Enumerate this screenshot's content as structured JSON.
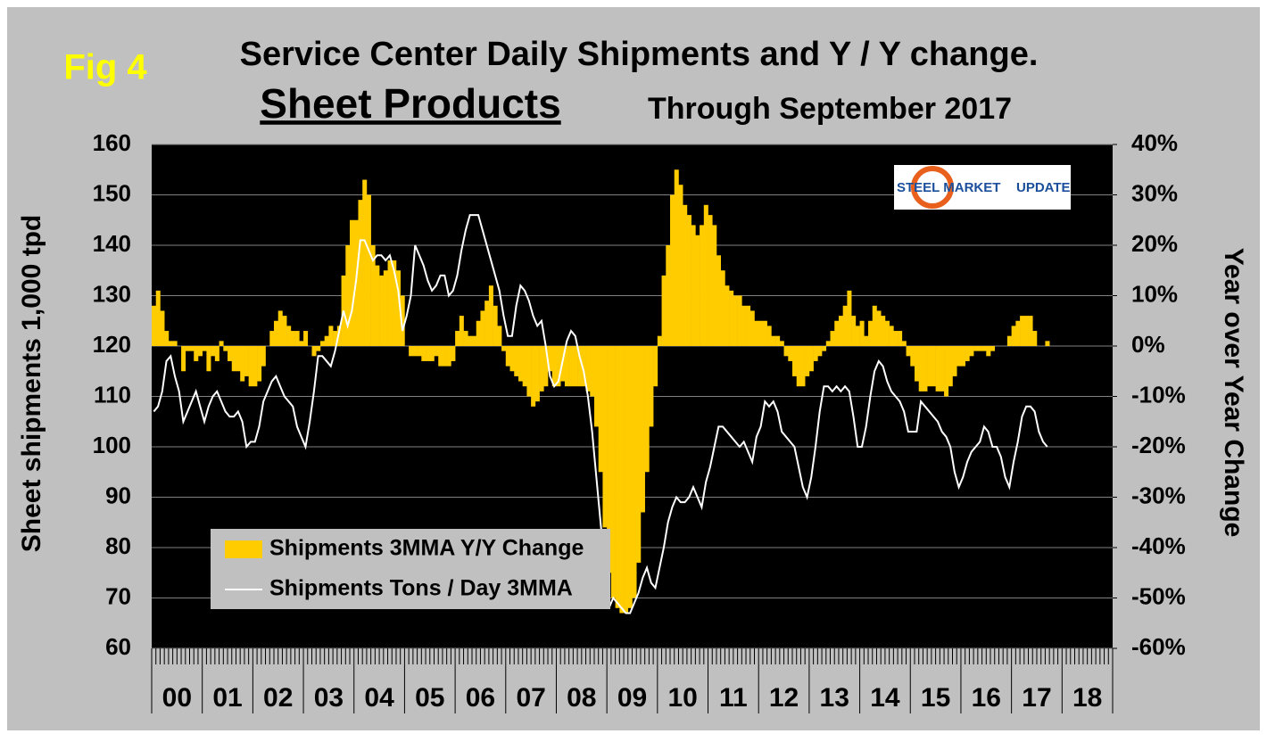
{
  "fig_label": "Fig 4",
  "chart_data": {
    "type": "combo",
    "title": "Service Center Daily Shipments and Y / Y change.",
    "subtitle": "Sheet Products",
    "subtitle_note": "Through September 2017",
    "ylabel": "Sheet shipments 1,000 tpd",
    "y2label": "Year over Year Change",
    "logo": {
      "brand": "STEEL MARKET",
      "word": "UPDATE"
    },
    "categories": [
      "00",
      null,
      null,
      null,
      null,
      null,
      null,
      null,
      null,
      null,
      null,
      null,
      "01",
      null,
      null,
      null,
      null,
      null,
      null,
      null,
      null,
      null,
      null,
      null,
      "02",
      null,
      null,
      null,
      null,
      null,
      null,
      null,
      null,
      null,
      null,
      null,
      "03",
      null,
      null,
      null,
      null,
      null,
      null,
      null,
      null,
      null,
      null,
      null,
      "04",
      null,
      null,
      null,
      null,
      null,
      null,
      null,
      null,
      null,
      null,
      null,
      "05",
      null,
      null,
      null,
      null,
      null,
      null,
      null,
      null,
      null,
      null,
      null,
      "06",
      null,
      null,
      null,
      null,
      null,
      null,
      null,
      null,
      null,
      null,
      null,
      "07",
      null,
      null,
      null,
      null,
      null,
      null,
      null,
      null,
      null,
      null,
      null,
      "08",
      null,
      null,
      null,
      null,
      null,
      null,
      null,
      null,
      null,
      null,
      null,
      "09",
      null,
      null,
      null,
      null,
      null,
      null,
      null,
      null,
      null,
      null,
      null,
      "10",
      null,
      null,
      null,
      null,
      null,
      null,
      null,
      null,
      null,
      null,
      null,
      "11",
      null,
      null,
      null,
      null,
      null,
      null,
      null,
      null,
      null,
      null,
      null,
      "12",
      null,
      null,
      null,
      null,
      null,
      null,
      null,
      null,
      null,
      null,
      null,
      "13",
      null,
      null,
      null,
      null,
      null,
      null,
      null,
      null,
      null,
      null,
      null,
      "14",
      null,
      null,
      null,
      null,
      null,
      null,
      null,
      null,
      null,
      null,
      null,
      "15",
      null,
      null,
      null,
      null,
      null,
      null,
      null,
      null,
      null,
      null,
      null,
      "16",
      null,
      null,
      null,
      null,
      null,
      null,
      null,
      null,
      null,
      null,
      null,
      "17",
      null,
      null,
      null,
      null,
      null,
      null,
      null,
      null,
      null,
      null,
      null,
      "18",
      null,
      null,
      null,
      null,
      null,
      null,
      null,
      null,
      null,
      null,
      null
    ],
    "series": [
      {
        "name": "Shipments 3MMA Y/Y Change",
        "type": "bar",
        "axis": "y2",
        "color": "#ffcc00",
        "values": [
          8,
          11,
          7,
          3,
          1,
          1,
          0,
          -5,
          -1,
          -1,
          -3,
          -2,
          -1,
          -5,
          -2,
          -3,
          1,
          -1,
          -3,
          -5,
          -5,
          -7,
          -6,
          -8,
          -8,
          -7,
          -4,
          0,
          3,
          5,
          7,
          6,
          4,
          3,
          3,
          1,
          3,
          0,
          -2,
          -1,
          1,
          2,
          4,
          3,
          4,
          14,
          20,
          25,
          25,
          29,
          33,
          30,
          20,
          16,
          14,
          15,
          17,
          17,
          15,
          10,
          0,
          -2,
          -2,
          -2,
          -3,
          -3,
          -3,
          -2,
          -4,
          -4,
          -4,
          -3,
          3,
          6,
          3,
          2,
          2,
          5,
          7,
          9,
          12,
          8,
          4,
          -1,
          -4,
          -5,
          -6,
          -7,
          -8,
          -10,
          -12,
          -11,
          -9,
          -8,
          -5,
          -8,
          -8,
          -7,
          -8,
          -8,
          -8,
          -8,
          -8,
          -9,
          -10,
          -16,
          -25,
          -36,
          -45,
          -50,
          -52,
          -53,
          -53,
          -52,
          -50,
          -43,
          -33,
          -25,
          -16,
          -8,
          2,
          14,
          20,
          30,
          35,
          32,
          28,
          26,
          24,
          22,
          24,
          28,
          26,
          24,
          18,
          15,
          12,
          11,
          10,
          10,
          8,
          8,
          7,
          5,
          5,
          5,
          4,
          2,
          2,
          1,
          -2,
          -3,
          -6,
          -8,
          -8,
          -6,
          -5,
          -3,
          -2,
          -1,
          1,
          3,
          5,
          6,
          8,
          11,
          6,
          4,
          5,
          2,
          5,
          8,
          7,
          6,
          5,
          4,
          3,
          3,
          1,
          -2,
          -4,
          -7,
          -9,
          -9,
          -8,
          -8,
          -9,
          -9,
          -10,
          -8,
          -6,
          -4,
          -4,
          -3,
          -2,
          -1,
          -1,
          -1,
          -2,
          -1,
          0,
          0,
          0,
          2,
          4,
          5,
          6,
          6,
          6,
          3,
          0,
          0,
          1,
          null,
          null,
          null,
          null,
          null,
          null,
          null,
          null,
          null,
          null,
          null,
          null,
          null,
          null,
          null
        ]
      },
      {
        "name": "Shipments Tons / Day 3MMA",
        "type": "line",
        "color": "#ffffff",
        "values": [
          107,
          108,
          111,
          117,
          118,
          114,
          111,
          105,
          107,
          109,
          111,
          108,
          105,
          108,
          110,
          111,
          109,
          107,
          106,
          106,
          107,
          105,
          100,
          101,
          101,
          104,
          109,
          111,
          113,
          114,
          112,
          110,
          109,
          108,
          104,
          102,
          100,
          105,
          111,
          118,
          118,
          117,
          116,
          119,
          123,
          127,
          124,
          127,
          133,
          141,
          141,
          139,
          137,
          138,
          138,
          137,
          138,
          135,
          131,
          123,
          126,
          130,
          140,
          138,
          136,
          133,
          131,
          132,
          134,
          134,
          130,
          131,
          134,
          139,
          143,
          146,
          146,
          146,
          143,
          140,
          137,
          134,
          131,
          126,
          122,
          122,
          128,
          132,
          131,
          129,
          126,
          124,
          125,
          120,
          114,
          112,
          113,
          117,
          121,
          123,
          122,
          118,
          115,
          110,
          103,
          94,
          85,
          76,
          68,
          70,
          69,
          68,
          67,
          67,
          69,
          71,
          74,
          76,
          73,
          72,
          76,
          80,
          85,
          88,
          90,
          89,
          89,
          90,
          92,
          90,
          88,
          93,
          96,
          100,
          104,
          104,
          103,
          102,
          101,
          100,
          101,
          99,
          97,
          102,
          104,
          109,
          108,
          109,
          107,
          103,
          102,
          101,
          100,
          96,
          92,
          90,
          94,
          100,
          107,
          112,
          112,
          111,
          112,
          111,
          112,
          111,
          106,
          100,
          100,
          104,
          110,
          115,
          117,
          116,
          113,
          111,
          110,
          109,
          107,
          103,
          103,
          103,
          109,
          108,
          107,
          106,
          105,
          103,
          102,
          100,
          95,
          92,
          94,
          97,
          99,
          100,
          101,
          104,
          103,
          100,
          100,
          98,
          94,
          92,
          97,
          101,
          106,
          108,
          108,
          107,
          103,
          101,
          100,
          null,
          null,
          null,
          null,
          null,
          null,
          null,
          null,
          null,
          null,
          null,
          null,
          null,
          null,
          null
        ]
      }
    ],
    "ylim": [
      60,
      160
    ],
    "yticks": [
      60,
      70,
      80,
      90,
      100,
      110,
      120,
      130,
      140,
      150,
      160
    ],
    "y2lim": [
      -60,
      40
    ],
    "y2ticks": [
      {
        "value": -60,
        "label": "-60%"
      },
      {
        "value": -50,
        "label": "-50%"
      },
      {
        "value": -40,
        "label": "-40%"
      },
      {
        "value": -30,
        "label": "-30%"
      },
      {
        "value": -20,
        "label": "-20%"
      },
      {
        "value": -10,
        "label": "-10%"
      },
      {
        "value": 0,
        "label": "0%"
      },
      {
        "value": 10,
        "label": "10%"
      },
      {
        "value": 20,
        "label": "20%"
      },
      {
        "value": 30,
        "label": "30%"
      },
      {
        "value": 40,
        "label": "40%"
      }
    ],
    "grid": true,
    "legend": "lower left"
  }
}
